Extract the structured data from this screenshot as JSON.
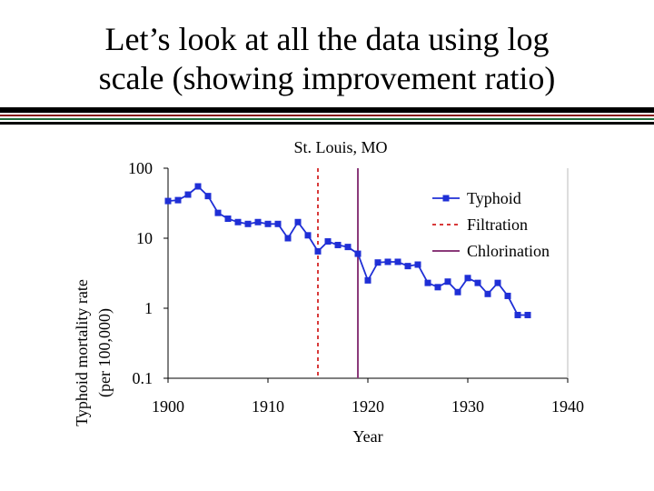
{
  "slide": {
    "title_line1": "Let’s look at all the data using log",
    "title_line2": "scale (showing improvement ratio)"
  },
  "colors": {
    "typhoid_series": "#1f2fd6",
    "filtration_line": "#d83a3a",
    "chlorination_line": "#8b3a7a",
    "rule_dark": "#000000",
    "rule_red": "#8b1a1a",
    "rule_green": "#1f6b3a"
  },
  "chart_data": {
    "type": "line",
    "title": "St. Louis, MO",
    "xlabel": "Year",
    "ylabel_line1": "Typhoid mortality rate",
    "ylabel_line2": "(per 100,000)",
    "yscale": "log",
    "xlim": [
      1900,
      1940
    ],
    "ylim": [
      0.1,
      100
    ],
    "x_ticks": [
      1900,
      1910,
      1920,
      1930,
      1940
    ],
    "x_tick_labels": [
      "1900",
      "1910",
      "1920",
      "1930",
      "1940"
    ],
    "y_ticks": [
      0.1,
      1,
      10,
      100
    ],
    "y_tick_labels": [
      "0.1",
      "1",
      "10",
      "100"
    ],
    "grid": false,
    "legend_position": "right",
    "series": [
      {
        "name": "Typhoid",
        "marker": "square",
        "x": [
          1900,
          1901,
          1902,
          1903,
          1904,
          1905,
          1906,
          1907,
          1908,
          1909,
          1910,
          1911,
          1912,
          1913,
          1914,
          1915,
          1916,
          1917,
          1918,
          1919,
          1920,
          1921,
          1922,
          1923,
          1924,
          1925,
          1926,
          1927,
          1928,
          1929,
          1930,
          1931,
          1932,
          1933,
          1934,
          1935,
          1936
        ],
        "y": [
          34,
          35,
          42,
          55,
          40,
          23,
          19,
          17,
          16,
          17,
          16,
          16,
          10,
          17,
          11,
          6.5,
          9,
          8,
          7.5,
          6,
          2.5,
          4.5,
          4.6,
          4.6,
          4,
          4.2,
          2.3,
          2,
          2.4,
          1.7,
          2.7,
          2.3,
          1.6,
          2.3,
          1.5,
          0.8,
          0.8
        ]
      },
      {
        "name": "Filtration",
        "type": "vline",
        "x": 1915
      },
      {
        "name": "Chlorination",
        "type": "vline",
        "x": 1919
      }
    ]
  }
}
